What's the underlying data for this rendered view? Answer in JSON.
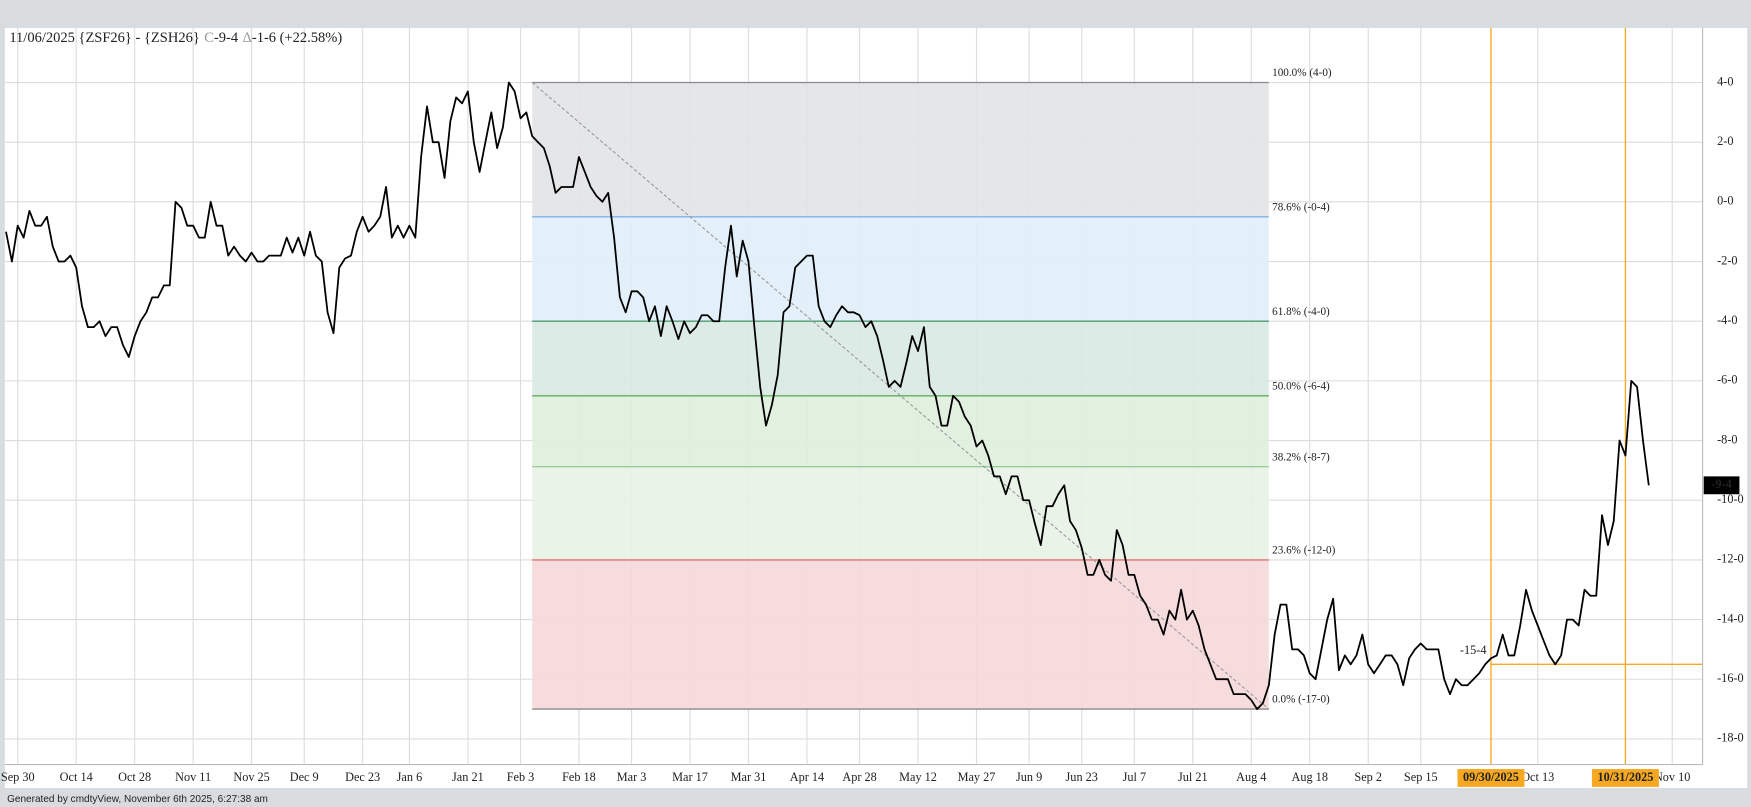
{
  "chart_data": {
    "type": "line",
    "title": "11/06/2025 {ZSF26} - {ZSH26}",
    "close_marker": "C",
    "close": "-9-4",
    "change_marker": "Δ",
    "change": "-1-6 (+22.58%)",
    "series": [
      {
        "color": "#000000",
        "x": [
          -2,
          -1,
          0,
          1,
          2,
          3,
          4,
          5,
          6,
          7,
          8,
          9,
          10,
          11,
          12,
          13,
          14,
          15,
          16,
          17,
          18,
          19,
          20,
          21,
          22,
          23,
          24,
          25,
          26,
          27,
          28,
          29,
          30,
          31,
          32,
          33,
          34,
          35,
          36,
          37,
          38,
          39,
          40,
          41,
          42,
          43,
          44,
          45,
          46,
          47,
          48,
          49,
          50,
          51,
          52,
          53,
          54,
          55,
          56,
          57,
          58,
          59,
          60,
          61,
          62,
          63,
          64,
          65,
          66,
          67,
          68,
          69,
          70,
          71,
          72,
          73,
          74,
          75,
          76,
          77,
          78,
          79,
          80,
          81,
          82,
          83,
          84,
          85,
          86,
          87,
          88,
          89,
          90,
          91,
          92,
          93,
          94,
          95,
          96,
          97,
          98,
          99,
          100,
          101,
          102,
          103,
          104,
          105,
          106,
          107,
          108,
          109,
          110,
          111,
          112,
          113,
          114,
          115,
          116,
          117,
          118,
          119,
          120,
          121,
          122,
          123,
          124,
          125,
          126,
          127,
          128,
          129,
          130,
          131,
          132,
          133,
          134,
          135,
          136,
          137,
          138,
          139,
          140,
          141,
          142,
          143,
          144,
          145,
          146,
          147,
          148,
          149,
          150,
          151,
          152,
          153,
          154,
          155,
          156,
          157,
          158,
          159,
          160,
          161,
          162,
          163,
          164,
          165,
          166,
          167,
          168,
          169,
          170,
          171,
          172,
          173,
          174,
          175,
          176,
          177,
          178,
          179,
          180,
          181,
          182,
          183,
          184,
          185,
          186,
          187,
          188,
          189,
          190,
          191,
          192,
          193,
          194,
          195,
          196,
          197,
          198,
          199,
          200,
          201,
          202,
          203,
          204,
          205,
          206,
          207,
          208,
          209,
          210,
          211,
          212,
          213,
          214,
          215,
          216,
          217,
          218,
          219,
          220,
          221,
          222,
          223,
          224,
          225,
          226,
          227,
          228,
          229,
          230,
          231,
          232,
          233,
          234,
          235,
          236,
          237,
          238,
          239,
          240,
          241,
          242,
          243,
          244,
          245,
          246,
          247,
          248,
          249,
          250,
          251,
          252,
          253,
          254,
          255,
          256,
          257,
          258,
          259,
          260,
          261,
          262,
          263,
          264,
          265,
          266,
          267,
          268,
          269,
          270,
          271,
          272,
          273,
          274,
          275,
          276,
          277,
          278,
          279
        ],
        "values": [
          -1.0,
          -2.0,
          -0.8,
          -1.2,
          -0.3,
          -0.8,
          -0.8,
          -0.5,
          -1.5,
          -2.0,
          -2.0,
          -1.8,
          -2.2,
          -3.5,
          -4.2,
          -4.2,
          -4.0,
          -4.5,
          -4.2,
          -4.2,
          -4.8,
          -5.2,
          -4.5,
          -4.0,
          -3.7,
          -3.2,
          -3.2,
          -2.8,
          -2.8,
          0.0,
          -0.2,
          -0.8,
          -0.8,
          -1.2,
          -1.2,
          0.0,
          -0.8,
          -0.8,
          -1.8,
          -1.5,
          -1.8,
          -2.0,
          -1.7,
          -2.0,
          -2.0,
          -1.8,
          -1.8,
          -1.8,
          -1.2,
          -1.7,
          -1.2,
          -1.8,
          -1.0,
          -1.8,
          -2.0,
          -3.7,
          -4.4,
          -2.2,
          -1.9,
          -1.8,
          -1.0,
          -0.5,
          -1.0,
          -0.8,
          -0.5,
          0.5,
          -1.2,
          -0.8,
          -1.2,
          -0.8,
          -1.2,
          1.5,
          3.2,
          2.0,
          2.0,
          0.8,
          2.7,
          3.5,
          3.3,
          3.7,
          2.0,
          1.0,
          2.0,
          3.0,
          1.8,
          2.5,
          4.0,
          3.7,
          2.8,
          3.0,
          2.2,
          2.0,
          1.8,
          1.2,
          0.3,
          0.5,
          0.5,
          0.5,
          1.5,
          1.0,
          0.5,
          0.2,
          0.0,
          0.3,
          -1.2,
          -3.2,
          -3.7,
          -3.0,
          -3.0,
          -3.2,
          -4.0,
          -3.5,
          -4.5,
          -3.5,
          -4.0,
          -4.6,
          -4.0,
          -4.4,
          -4.2,
          -3.8,
          -3.8,
          -4.0,
          -4.0,
          -2.2,
          -0.8,
          -2.5,
          -1.3,
          -2.0,
          -4.2,
          -6.2,
          -7.5,
          -6.8,
          -5.8,
          -3.7,
          -3.5,
          -2.2,
          -2.0,
          -1.8,
          -1.8,
          -3.5,
          -4.0,
          -4.2,
          -3.8,
          -3.5,
          -3.7,
          -3.7,
          -3.8,
          -4.2,
          -4.0,
          -4.5,
          -5.3,
          -6.2,
          -6.0,
          -6.2,
          -5.4,
          -4.5,
          -5.0,
          -4.2,
          -6.2,
          -6.5,
          -7.5,
          -7.5,
          -6.5,
          -6.7,
          -7.2,
          -7.5,
          -8.2,
          -8.0,
          -8.5,
          -9.2,
          -9.2,
          -9.8,
          -9.2,
          -9.2,
          -10.0,
          -10.0,
          -10.8,
          -11.5,
          -10.2,
          -10.2,
          -9.8,
          -9.5,
          -10.7,
          -11.0,
          -11.6,
          -12.5,
          -12.5,
          -12.0,
          -12.5,
          -12.7,
          -11.0,
          -11.5,
          -12.5,
          -12.5,
          -13.2,
          -13.5,
          -14.0,
          -14.0,
          -14.5,
          -13.7,
          -14.0,
          -13.0,
          -14.0,
          -13.7,
          -14.2,
          -15.0,
          -15.5,
          -16.0,
          -16.0,
          -16.0,
          -16.5,
          -16.5,
          -16.5,
          -16.7,
          -17.0,
          -16.8,
          -16.2,
          -14.5,
          -13.5,
          -13.5,
          -15.0,
          -15.0,
          -15.2,
          -15.8,
          -16.0,
          -15.0,
          -14.0,
          -13.3,
          -15.7,
          -15.2,
          -15.5,
          -15.2,
          -14.5,
          -15.5,
          -15.8,
          -15.5,
          -15.2,
          -15.2,
          -15.5,
          -16.2,
          -15.3,
          -15.0,
          -14.8,
          -15.0,
          -15.0,
          -15.0,
          -16.0,
          -16.5,
          -16.0,
          -16.2,
          -16.2,
          -16.0,
          -15.8,
          -15.5,
          -15.3,
          -15.2,
          -14.5,
          -15.2,
          -15.2,
          -14.2,
          -13.0,
          -13.7,
          -14.2,
          -14.7,
          -15.2,
          -15.5,
          -15.2,
          -14.0,
          -14.0,
          -14.2,
          -13.0,
          -13.2,
          -13.2,
          -10.5,
          -11.5,
          -10.7,
          -8.0,
          -8.5,
          -6.0,
          -6.2,
          -8.0,
          -9.5
        ]
      }
    ],
    "xlim": [
      -2.2,
      288.2
    ],
    "xticks": [
      {
        "value": 0,
        "label": "Sep 30"
      },
      {
        "value": 10,
        "label": "Oct 14"
      },
      {
        "value": 20,
        "label": "Oct 28"
      },
      {
        "value": 30,
        "label": "Nov 11"
      },
      {
        "value": 40,
        "label": "Nov 25"
      },
      {
        "value": 49,
        "label": "Dec 9"
      },
      {
        "value": 59,
        "label": "Dec 23"
      },
      {
        "value": 67,
        "label": "Jan 6"
      },
      {
        "value": 77,
        "label": "Jan 21"
      },
      {
        "value": 86,
        "label": "Feb 3"
      },
      {
        "value": 96,
        "label": "Feb 18"
      },
      {
        "value": 105,
        "label": "Mar 3"
      },
      {
        "value": 115,
        "label": "Mar 17"
      },
      {
        "value": 125,
        "label": "Mar 31"
      },
      {
        "value": 135,
        "label": "Apr 14"
      },
      {
        "value": 144,
        "label": "Apr 28"
      },
      {
        "value": 154,
        "label": "May 12"
      },
      {
        "value": 164,
        "label": "May 27"
      },
      {
        "value": 173,
        "label": "Jun 9"
      },
      {
        "value": 182,
        "label": "Jun 23"
      },
      {
        "value": 191,
        "label": "Jul 7"
      },
      {
        "value": 201,
        "label": "Jul 21"
      },
      {
        "value": 211,
        "label": "Aug 4"
      },
      {
        "value": 221,
        "label": "Aug 18"
      },
      {
        "value": 231,
        "label": "Sep 2"
      },
      {
        "value": 240,
        "label": "Sep 15"
      },
      {
        "value": 260,
        "label": "Oct 13"
      },
      {
        "value": 283,
        "label": "Nov 10"
      }
    ],
    "ylim": [
      -18.86,
      5.83
    ],
    "yticks": [
      {
        "value": 4,
        "label": "4-0"
      },
      {
        "value": 2,
        "label": "2-0"
      },
      {
        "value": 0,
        "label": "0-0"
      },
      {
        "value": -2,
        "label": "-2-0"
      },
      {
        "value": -4,
        "label": "-4-0"
      },
      {
        "value": -6,
        "label": "-6-0"
      },
      {
        "value": -8,
        "label": "-8-0"
      },
      {
        "value": -10,
        "label": "-10-0"
      },
      {
        "value": -12,
        "label": "-12-0"
      },
      {
        "value": -14,
        "label": "-14-0"
      },
      {
        "value": -16,
        "label": "-16-0"
      },
      {
        "value": -18,
        "label": "-18-0"
      }
    ],
    "grid": true,
    "fib": {
      "x": [
        88,
        214
      ],
      "levels": [
        {
          "value": 4,
          "label": "100.0% (4-0)",
          "line_color": "#8a8a8e",
          "fill": "#e2e3e6"
        },
        {
          "value": -0.5,
          "label": "78.6% (-0-4)",
          "line_color": "#7fb3e6",
          "fill": "#e0eefa"
        },
        {
          "value": -4,
          "label": "61.8% (-4-0)",
          "line_color": "#4f9a72",
          "fill": "#d9e9e4"
        },
        {
          "value": -6.5,
          "label": "50.0% (-6-4)",
          "line_color": "#5fae60",
          "fill": "#dfeedd"
        },
        {
          "value": -8.875,
          "label": "38.2% (-8-7)",
          "line_color": "#98cc98",
          "fill": "#e7f2e6"
        },
        {
          "value": -12,
          "label": "23.6% (-12-0)",
          "line_color": "#e07070",
          "fill": "#f6d8da"
        },
        {
          "value": -17,
          "label": "0.0% (-17-0)",
          "line_color": "#8a8a8e"
        }
      ]
    },
    "trendline": {
      "x": [
        88,
        214
      ],
      "y": [
        4,
        -17
      ],
      "color": "#999999"
    },
    "marker_color": "#f7a823",
    "markers": [
      {
        "x": 252,
        "label": "09/30/2025"
      },
      {
        "x": 275,
        "label": "10/31/2025"
      }
    ],
    "level": {
      "value": -15.5,
      "label": "-15-4",
      "x_start": 252
    },
    "last_price": {
      "value": -9.5,
      "label": "-9-4"
    }
  },
  "footer": "Generated by cmdtyView, November 6th 2025, 6:27:38 am"
}
